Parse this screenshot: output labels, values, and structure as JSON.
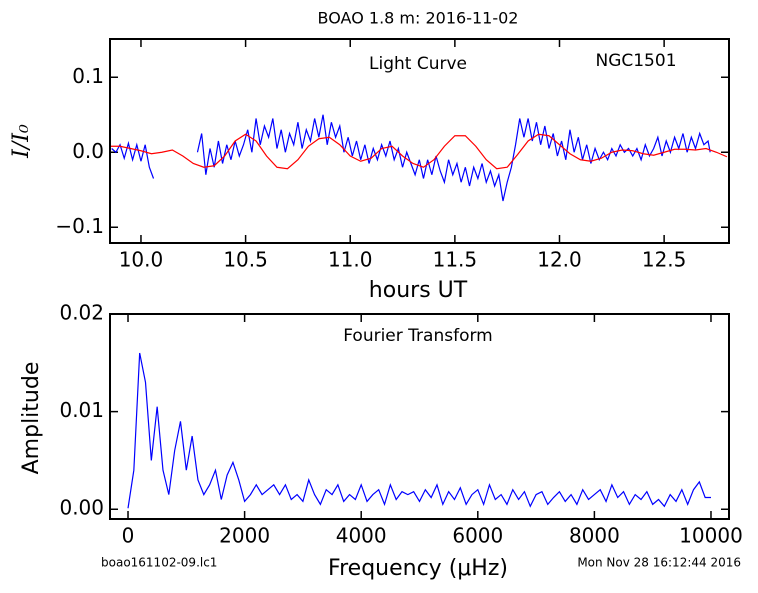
{
  "figure": {
    "title": "BOAO 1.8 m:  2016-11-02",
    "footnotes": [
      "boao161102-09.lc1",
      "Mon Nov 28 16:12:44 2016"
    ]
  },
  "chart_data": [
    {
      "type": "line",
      "annotations": [
        "Light Curve",
        "NGC1501"
      ],
      "ylabel": "I/I₀",
      "xlabel": "hours UT",
      "xlim": [
        9.852,
        12.81
      ],
      "ylim": [
        -0.121,
        0.151
      ],
      "xticks": [
        {
          "value": 10,
          "label": "10.0"
        },
        {
          "value": 10.5,
          "label": "10.5"
        },
        {
          "value": 11,
          "label": "11.0"
        },
        {
          "value": 11.5,
          "label": "11.5"
        },
        {
          "value": 12,
          "label": "12.0"
        },
        {
          "value": 12.5,
          "label": "12.5"
        }
      ],
      "yticks": [
        {
          "value": -0.1,
          "label": "−0.1"
        },
        {
          "value": 0,
          "label": "0.0"
        },
        {
          "value": 0.1,
          "label": "0.1"
        }
      ],
      "series": [
        {
          "color": "#0000ff",
          "x": [
            9.86,
            9.88,
            9.9,
            9.92,
            9.94,
            9.96,
            9.98,
            10.0,
            10.02,
            10.04,
            10.06,
            10.16,
            10.27,
            10.29,
            10.31,
            10.33,
            10.35,
            10.37,
            10.39,
            10.41,
            10.43,
            10.45,
            10.47,
            10.49,
            10.51,
            10.53,
            10.55,
            10.57,
            10.59,
            10.61,
            10.63,
            10.65,
            10.67,
            10.69,
            10.71,
            10.73,
            10.75,
            10.77,
            10.79,
            10.81,
            10.83,
            10.85,
            10.87,
            10.89,
            10.91,
            10.93,
            10.95,
            10.97,
            10.99,
            11.01,
            11.03,
            11.05,
            11.07,
            11.09,
            11.11,
            11.13,
            11.15,
            11.17,
            11.19,
            11.21,
            11.23,
            11.25,
            11.27,
            11.29,
            11.31,
            11.33,
            11.35,
            11.37,
            11.39,
            11.41,
            11.43,
            11.45,
            11.47,
            11.49,
            11.51,
            11.53,
            11.55,
            11.57,
            11.59,
            11.61,
            11.63,
            11.65,
            11.67,
            11.69,
            11.71,
            11.73,
            11.75,
            11.77,
            11.79,
            11.81,
            11.83,
            11.85,
            11.87,
            11.89,
            11.91,
            11.93,
            11.95,
            11.97,
            11.99,
            12.01,
            12.03,
            12.05,
            12.07,
            12.09,
            12.11,
            12.13,
            12.15,
            12.17,
            12.19,
            12.21,
            12.23,
            12.25,
            12.27,
            12.29,
            12.31,
            12.33,
            12.35,
            12.37,
            12.39,
            12.41,
            12.43,
            12.45,
            12.47,
            12.49,
            12.51,
            12.53,
            12.55,
            12.57,
            12.59,
            12.61,
            12.63,
            12.65,
            12.67,
            12.69,
            12.71,
            12.72
          ],
          "values": [
            0.005,
            0.0,
            0.01,
            -0.008,
            0.012,
            -0.01,
            0.01,
            -0.012,
            0.01,
            -0.02,
            -0.035,
            null,
            0.0,
            0.025,
            -0.03,
            0.005,
            -0.02,
            0.015,
            -0.015,
            0.01,
            -0.01,
            0.015,
            -0.005,
            0.01,
            0.03,
            0.0,
            0.045,
            0.01,
            0.035,
            0.02,
            0.045,
            0.005,
            0.03,
            0.0,
            0.025,
            0.01,
            0.04,
            0.005,
            0.03,
            0.015,
            0.045,
            0.02,
            0.05,
            0.01,
            0.04,
            0.02,
            0.035,
            0.0,
            0.02,
            -0.005,
            0.015,
            -0.01,
            0.01,
            -0.015,
            0.005,
            -0.01,
            0.01,
            -0.005,
            0.015,
            -0.01,
            0.005,
            -0.02,
            0.0,
            -0.015,
            -0.03,
            -0.01,
            -0.035,
            -0.01,
            -0.03,
            -0.005,
            -0.025,
            -0.04,
            -0.01,
            -0.03,
            -0.015,
            -0.04,
            -0.02,
            -0.045,
            -0.02,
            -0.035,
            -0.015,
            -0.04,
            -0.025,
            -0.045,
            -0.03,
            -0.065,
            -0.04,
            -0.02,
            0.01,
            0.045,
            0.02,
            0.045,
            0.015,
            0.04,
            0.01,
            0.035,
            0.005,
            0.025,
            -0.005,
            0.015,
            -0.01,
            0.03,
            0.0,
            0.02,
            -0.01,
            0.01,
            -0.015,
            0.005,
            -0.01,
            0.0,
            -0.01,
            0.005,
            -0.005,
            0.01,
            0.0,
            0.005,
            -0.005,
            0.005,
            -0.01,
            0.01,
            -0.005,
            0.005,
            0.02,
            -0.005,
            0.015,
            0.0,
            0.02,
            0.005,
            0.025,
            0.0,
            0.02,
            0.005,
            0.025,
            0.01,
            0.015,
            0.0
          ]
        },
        {
          "color": "#ff0000",
          "x": [
            9.85,
            9.9,
            9.95,
            10.0,
            10.05,
            10.1,
            10.15,
            10.2,
            10.25,
            10.3,
            10.35,
            10.4,
            10.45,
            10.5,
            10.55,
            10.6,
            10.65,
            10.7,
            10.75,
            10.8,
            10.85,
            10.9,
            10.95,
            11.0,
            11.05,
            11.1,
            11.15,
            11.2,
            11.25,
            11.3,
            11.35,
            11.4,
            11.45,
            11.5,
            11.55,
            11.6,
            11.65,
            11.7,
            11.75,
            11.8,
            11.85,
            11.9,
            11.95,
            12.0,
            12.05,
            12.1,
            12.15,
            12.2,
            12.25,
            12.3,
            12.35,
            12.4,
            12.45,
            12.5,
            12.55,
            12.6,
            12.65,
            12.7,
            12.75,
            12.8
          ],
          "values": [
            0.008,
            0.008,
            0.005,
            0.002,
            -0.002,
            0.0,
            0.003,
            -0.005,
            -0.015,
            -0.02,
            -0.018,
            -0.005,
            0.015,
            0.024,
            0.015,
            -0.005,
            -0.02,
            -0.022,
            -0.01,
            0.008,
            0.018,
            0.02,
            0.01,
            -0.005,
            -0.012,
            -0.008,
            0.005,
            0.008,
            -0.005,
            -0.015,
            -0.02,
            -0.01,
            0.008,
            0.022,
            0.022,
            0.008,
            -0.01,
            -0.022,
            -0.02,
            -0.003,
            0.015,
            0.024,
            0.022,
            0.01,
            -0.002,
            -0.01,
            -0.012,
            -0.008,
            0.0,
            0.003,
            0.002,
            -0.002,
            -0.004,
            0.0,
            0.004,
            0.004,
            0.003,
            0.005,
            0.0,
            -0.006
          ]
        }
      ]
    },
    {
      "type": "line",
      "annotations": [
        "Fourier Transform"
      ],
      "ylabel": "Amplitude",
      "xlabel": "Frequency (μHz)",
      "xlim": [
        -309,
        10309
      ],
      "ylim": [
        -0.001,
        0.02
      ],
      "xticks": [
        0,
        2000,
        4000,
        6000,
        8000,
        10000
      ],
      "yticks": [
        {
          "value": 0,
          "label": "0.00"
        },
        {
          "value": 0.01,
          "label": "0.01"
        },
        {
          "value": 0.02,
          "label": "0.02"
        }
      ],
      "series": [
        {
          "color": "#0000ff",
          "x": [
            0,
            100,
            200,
            300,
            400,
            500,
            600,
            700,
            800,
            900,
            1000,
            1100,
            1200,
            1300,
            1400,
            1500,
            1600,
            1700,
            1800,
            1900,
            2000,
            2100,
            2200,
            2300,
            2400,
            2500,
            2600,
            2700,
            2800,
            2900,
            3000,
            3100,
            3200,
            3300,
            3400,
            3500,
            3600,
            3700,
            3800,
            3900,
            4000,
            4100,
            4200,
            4300,
            4400,
            4500,
            4600,
            4700,
            4800,
            4900,
            5000,
            5100,
            5200,
            5300,
            5400,
            5500,
            5600,
            5700,
            5800,
            5900,
            6000,
            6100,
            6200,
            6300,
            6400,
            6500,
            6600,
            6700,
            6800,
            6900,
            7000,
            7100,
            7200,
            7300,
            7400,
            7500,
            7600,
            7700,
            7800,
            7900,
            8000,
            8100,
            8200,
            8300,
            8400,
            8500,
            8600,
            8700,
            8800,
            8900,
            9000,
            9100,
            9200,
            9300,
            9400,
            9500,
            9600,
            9700,
            9800,
            9900,
            10000
          ],
          "values": [
            0.0001,
            0.004,
            0.016,
            0.013,
            0.005,
            0.0105,
            0.004,
            0.0015,
            0.006,
            0.009,
            0.004,
            0.0075,
            0.003,
            0.0015,
            0.0025,
            0.004,
            0.001,
            0.0035,
            0.0048,
            0.003,
            0.0008,
            0.0015,
            0.0025,
            0.0015,
            0.002,
            0.0025,
            0.0015,
            0.0025,
            0.001,
            0.0015,
            0.0008,
            0.003,
            0.0015,
            0.0005,
            0.002,
            0.0015,
            0.0025,
            0.0008,
            0.0015,
            0.001,
            0.0025,
            0.0008,
            0.0015,
            0.002,
            0.0005,
            0.0025,
            0.001,
            0.0018,
            0.0015,
            0.0018,
            0.0008,
            0.002,
            0.0012,
            0.0025,
            0.0005,
            0.0018,
            0.001,
            0.0022,
            0.0005,
            0.0015,
            0.002,
            0.0005,
            0.0025,
            0.001,
            0.0015,
            0.0005,
            0.002,
            0.001,
            0.0018,
            0.0003,
            0.0015,
            0.0018,
            0.0005,
            0.0012,
            0.0018,
            0.0008,
            0.0015,
            0.0005,
            0.002,
            0.001,
            0.0015,
            0.002,
            0.0008,
            0.0025,
            0.0012,
            0.0018,
            0.0005,
            0.0015,
            0.001,
            0.0018,
            0.0005,
            0.001,
            0.0003,
            0.0015,
            0.0008,
            0.002,
            0.0005,
            0.002,
            0.0028,
            0.0012,
            0.0012
          ]
        }
      ]
    }
  ]
}
